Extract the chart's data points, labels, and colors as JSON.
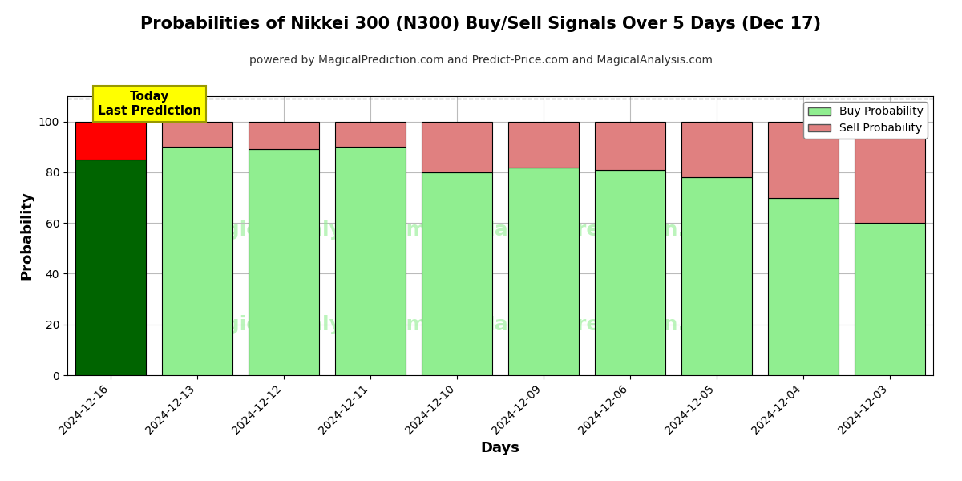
{
  "title": "Probabilities of Nikkei 300 (N300) Buy/Sell Signals Over 5 Days (Dec 17)",
  "subtitle": "powered by MagicalPrediction.com and Predict-Price.com and MagicalAnalysis.com",
  "xlabel": "Days",
  "ylabel": "Probability",
  "categories": [
    "2024-12-16",
    "2024-12-13",
    "2024-12-12",
    "2024-12-11",
    "2024-12-10",
    "2024-12-09",
    "2024-12-06",
    "2024-12-05",
    "2024-12-04",
    "2024-12-03"
  ],
  "buy_values": [
    85,
    90,
    89,
    90,
    80,
    82,
    81,
    78,
    70,
    60
  ],
  "sell_values": [
    15,
    10,
    11,
    10,
    20,
    18,
    19,
    22,
    30,
    40
  ],
  "buy_color_today": "#006400",
  "sell_color_today": "#FF0000",
  "buy_color_normal": "#90EE90",
  "sell_color_normal": "#E08080",
  "bar_edge_color": "#000000",
  "today_annotation_bg": "#FFFF00",
  "today_annotation_text": "Today\nLast Prediction",
  "ylim": [
    0,
    110
  ],
  "yticks": [
    0,
    20,
    40,
    60,
    80,
    100
  ],
  "dashed_line_y": 109,
  "legend_buy_label": "Buy Probability",
  "legend_sell_label": "Sell Probability",
  "bg_color": "#ffffff",
  "grid_color": "#bbbbbb",
  "title_fontsize": 15,
  "subtitle_fontsize": 10,
  "axis_label_fontsize": 13,
  "tick_fontsize": 10,
  "bar_width": 0.82
}
